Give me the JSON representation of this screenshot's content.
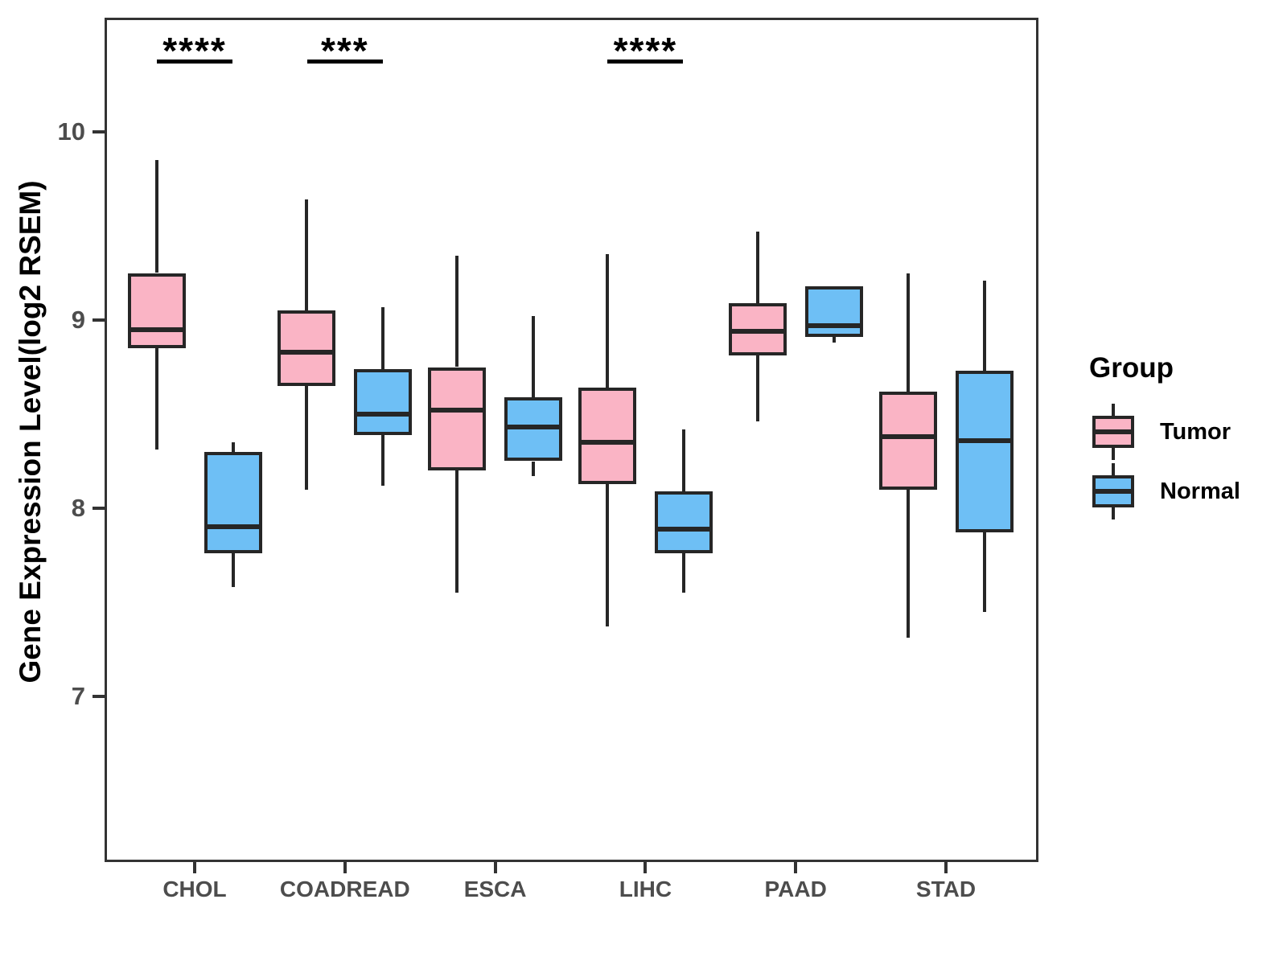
{
  "chart_data": {
    "type": "boxplot",
    "title": "",
    "ylabel": "Gene Expression Level(log2 RSEM)",
    "categories": [
      "CHOL",
      "COADREAD",
      "ESCA",
      "LIHC",
      "PAAD",
      "STAD"
    ],
    "y_axis": {
      "ticks": [
        10,
        9,
        8,
        7
      ],
      "range_shown": [
        6.1,
        10.6
      ],
      "grid": false
    },
    "legend": {
      "title": "Group",
      "position": "right"
    },
    "series": [
      {
        "name": "Tumor",
        "color": "#FAB4C5",
        "boxes": [
          {
            "category": "CHOL",
            "whisker_low": 8.31,
            "q1": 8.85,
            "median": 8.95,
            "q3": 9.25,
            "whisker_high": 9.85
          },
          {
            "category": "COADREAD",
            "whisker_low": 8.1,
            "q1": 8.65,
            "median": 8.83,
            "q3": 9.05,
            "whisker_high": 9.64
          },
          {
            "category": "ESCA",
            "whisker_low": 7.55,
            "q1": 8.2,
            "median": 8.52,
            "q3": 8.75,
            "whisker_high": 9.34
          },
          {
            "category": "LIHC",
            "whisker_low": 7.37,
            "q1": 8.13,
            "median": 8.35,
            "q3": 8.64,
            "whisker_high": 9.35
          },
          {
            "category": "PAAD",
            "whisker_low": 8.46,
            "q1": 8.81,
            "median": 8.94,
            "q3": 9.09,
            "whisker_high": 9.47
          },
          {
            "category": "STAD",
            "whisker_low": 7.31,
            "q1": 8.1,
            "median": 8.38,
            "q3": 8.62,
            "whisker_high": 9.25
          }
        ]
      },
      {
        "name": "Normal",
        "color": "#6EBFF5",
        "boxes": [
          {
            "category": "CHOL",
            "whisker_low": 7.58,
            "q1": 7.76,
            "median": 7.9,
            "q3": 8.3,
            "whisker_high": 8.35
          },
          {
            "category": "COADREAD",
            "whisker_low": 8.12,
            "q1": 8.39,
            "median": 8.5,
            "q3": 8.74,
            "whisker_high": 9.07
          },
          {
            "category": "ESCA",
            "whisker_low": 8.17,
            "q1": 8.25,
            "median": 8.43,
            "q3": 8.59,
            "whisker_high": 9.02
          },
          {
            "category": "LIHC",
            "whisker_low": 7.55,
            "q1": 7.76,
            "median": 7.89,
            "q3": 8.09,
            "whisker_high": 8.42
          },
          {
            "category": "PAAD",
            "whisker_low": 8.88,
            "q1": 8.91,
            "median": 8.97,
            "q3": 9.18,
            "whisker_high": 9.18
          },
          {
            "category": "STAD",
            "whisker_low": 7.45,
            "q1": 7.87,
            "median": 8.36,
            "q3": 8.73,
            "whisker_high": 9.21
          }
        ]
      }
    ],
    "significance": [
      {
        "category": "CHOL",
        "stars": "****"
      },
      {
        "category": "COADREAD",
        "stars": "***"
      },
      {
        "category": "LIHC",
        "stars": "****"
      }
    ]
  },
  "style_colors": {
    "tumor_fill": "#FAB4C5",
    "normal_fill": "#6EBFF5",
    "box_stroke": "#262626",
    "axis_line": "#333333",
    "panel_border": "#333333",
    "axis_text": "#4d4d4d",
    "annotation": "#000000"
  }
}
